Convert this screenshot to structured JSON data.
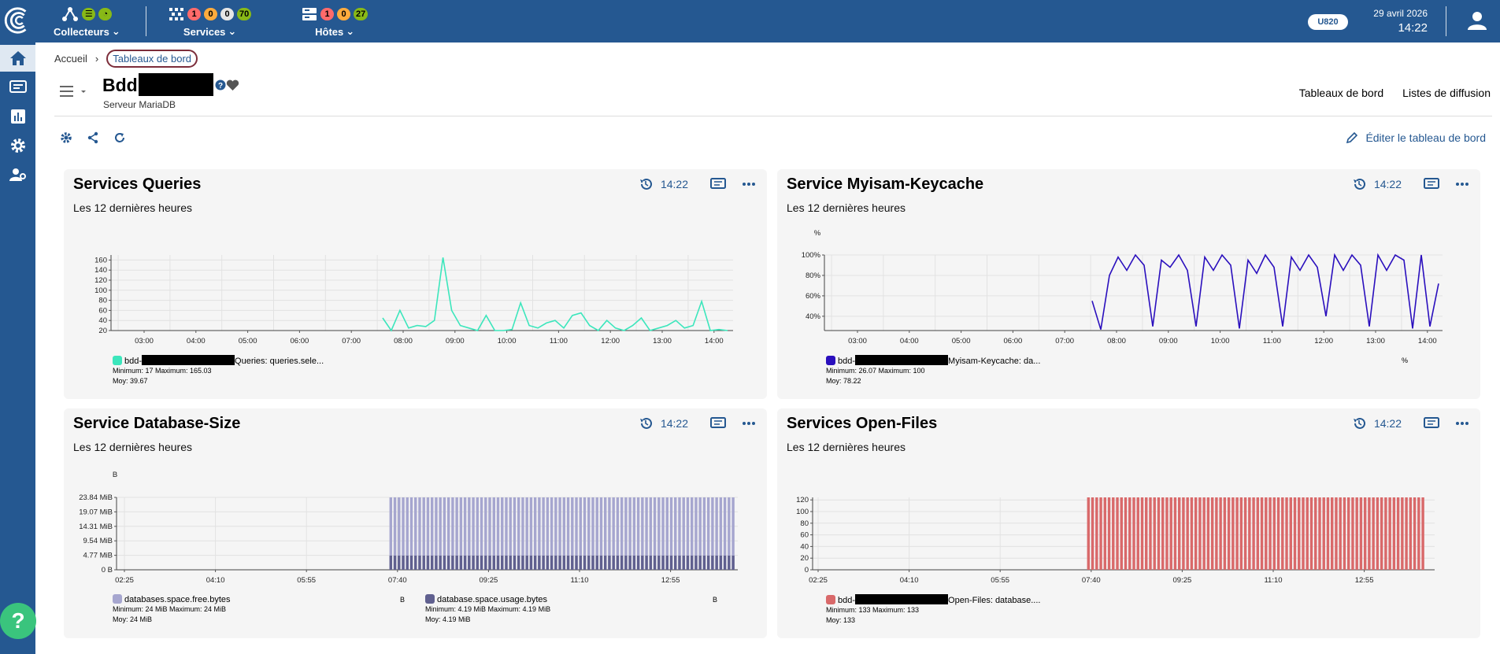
{
  "topbar": {
    "collectors": {
      "label": "Collecteurs"
    },
    "services": {
      "label": "Services",
      "counts": [
        "1",
        "0",
        "0",
        "70"
      ]
    },
    "hosts": {
      "label": "Hôtes",
      "counts": [
        "1",
        "0",
        "27"
      ]
    },
    "version": "U820",
    "date": "29 avril 2026",
    "time": "14:22"
  },
  "breadcrumb": {
    "home": "Accueil",
    "current": "Tableaux de bord"
  },
  "header": {
    "title": "Bdd",
    "subtitle": "Serveur MariaDB",
    "links": [
      "Tableaux de bord",
      "Listes de diffusion"
    ],
    "edit": "Éditer le tableau de bord"
  },
  "panels": [
    {
      "title": "Services Queries",
      "subtitle": "Les 12 dernières heures",
      "time": "14:22",
      "unit": "",
      "legend": [
        {
          "name": "bdd-",
          "suffix": "Queries: queries.sele...",
          "color": "#3ce6bc",
          "min": "Minimum: 17",
          "max": "Maximum: 165.03",
          "avg": "Moy: 39.67"
        }
      ]
    },
    {
      "title": "Service Myisam-Keycache",
      "subtitle": "Les 12 dernières heures",
      "time": "14:22",
      "unit": "%",
      "legend": [
        {
          "name": "bdd-",
          "suffix": "Myisam-Keycache: da...",
          "color": "#2a0fbd",
          "min": "Minimum: 26.07",
          "max": "Maximum: 100",
          "avg": "Moy: 78.22",
          "unit": "%"
        }
      ]
    },
    {
      "title": "Service Database-Size",
      "subtitle": "Les 12 dernières heures",
      "time": "14:22",
      "unit": "B",
      "legend": [
        {
          "name": "databases.space.free.bytes",
          "suffix": "",
          "color": "#a6a6cf",
          "min": "Minimum: 24 MiB",
          "max": "Maximum: 24 MiB",
          "avg": "Moy: 24 MiB",
          "unit": "B"
        },
        {
          "name": "database.space.usage.bytes",
          "suffix": "",
          "color": "#60608f",
          "min": "Minimum: 4.19 MiB",
          "max": "Maximum: 4.19 MiB",
          "avg": "Moy: 4.19 MiB",
          "unit": "B"
        }
      ]
    },
    {
      "title": "Services Open-Files",
      "subtitle": "Les 12 dernières heures",
      "time": "14:22",
      "unit": "",
      "legend": [
        {
          "name": "bdd-",
          "suffix": "Open-Files: database....",
          "color": "#d9696a",
          "min": "Minimum: 133",
          "max": "Maximum: 133",
          "avg": "Moy: 133"
        }
      ]
    }
  ],
  "chart_data": [
    {
      "type": "line",
      "title": "Services Queries",
      "x": [
        "07:40",
        "07:50",
        "08:00",
        "08:10",
        "08:20",
        "08:30",
        "08:40",
        "08:50",
        "09:00",
        "09:10",
        "09:20",
        "09:30",
        "09:40",
        "09:50",
        "10:00",
        "10:10",
        "10:20",
        "10:30",
        "10:40",
        "10:50",
        "11:00",
        "11:10",
        "11:20",
        "11:30",
        "11:40",
        "11:50",
        "12:00",
        "12:10",
        "12:20",
        "12:30",
        "12:40",
        "12:50",
        "13:00",
        "13:10",
        "13:20",
        "13:30",
        "13:40",
        "13:50",
        "14:00",
        "14:10",
        "14:20"
      ],
      "series": [
        {
          "name": "Queries: queries.sele...",
          "values": [
            45,
            20,
            60,
            25,
            30,
            28,
            40,
            165,
            60,
            30,
            25,
            20,
            50,
            20,
            20,
            22,
            75,
            30,
            25,
            35,
            40,
            25,
            50,
            55,
            30,
            20,
            40,
            25,
            20,
            30,
            45,
            20,
            25,
            30,
            40,
            25,
            30,
            78,
            20,
            22,
            20
          ]
        }
      ],
      "xticks": [
        "03:00",
        "04:00",
        "05:00",
        "06:00",
        "07:00",
        "08:00",
        "09:00",
        "10:00",
        "11:00",
        "12:00",
        "13:00",
        "14:00"
      ],
      "yticks": [
        "20",
        "40",
        "60",
        "80",
        "100",
        "120",
        "140",
        "160"
      ],
      "ylim": [
        20,
        170
      ]
    },
    {
      "type": "line",
      "title": "Service Myisam-Keycache",
      "x": [
        "07:40",
        "07:50",
        "08:00",
        "08:10",
        "08:20",
        "08:30",
        "08:40",
        "08:50",
        "09:00",
        "09:10",
        "09:20",
        "09:30",
        "09:40",
        "09:50",
        "10:00",
        "10:10",
        "10:20",
        "10:30",
        "10:40",
        "10:50",
        "11:00",
        "11:10",
        "11:20",
        "11:30",
        "11:40",
        "11:50",
        "12:00",
        "12:10",
        "12:20",
        "12:30",
        "12:40",
        "12:50",
        "13:00",
        "13:10",
        "13:20",
        "13:30",
        "13:40",
        "13:50",
        "14:00",
        "14:10",
        "14:20"
      ],
      "series": [
        {
          "name": "Myisam-Keycache: da...",
          "values": [
            55,
            27,
            80,
            98,
            85,
            100,
            90,
            30,
            95,
            88,
            100,
            85,
            30,
            98,
            85,
            100,
            90,
            28,
            95,
            82,
            100,
            88,
            30,
            98,
            85,
            100,
            88,
            40,
            100,
            85,
            100,
            90,
            30,
            100,
            85,
            100,
            95,
            28,
            100,
            30,
            72
          ]
        }
      ],
      "xticks": [
        "03:00",
        "04:00",
        "05:00",
        "06:00",
        "07:00",
        "08:00",
        "09:00",
        "10:00",
        "11:00",
        "12:00",
        "13:00",
        "14:00"
      ],
      "yticks": [
        "40%",
        "60%",
        "80%",
        "100%"
      ],
      "ylim": [
        26,
        100
      ]
    },
    {
      "type": "bar",
      "title": "Service Database-Size",
      "series": [
        {
          "name": "databases.space.free.bytes",
          "value": "24 MiB"
        },
        {
          "name": "database.space.usage.bytes",
          "value": "4.19 MiB"
        }
      ],
      "xticks": [
        "02:25",
        "04:10",
        "05:55",
        "07:40",
        "09:25",
        "11:10",
        "12:55"
      ],
      "yticks": [
        "0 B",
        "4.77 MiB",
        "9.54 MiB",
        "14.31 MiB",
        "19.07 MiB",
        "23.84 MiB"
      ]
    },
    {
      "type": "bar",
      "title": "Services Open-Files",
      "series": [
        {
          "name": "Open-Files: database....",
          "value": 133
        }
      ],
      "xticks": [
        "02:25",
        "04:10",
        "05:55",
        "07:40",
        "09:25",
        "11:10",
        "12:55"
      ],
      "yticks": [
        "0",
        "20",
        "40",
        "60",
        "80",
        "100",
        "120"
      ]
    }
  ]
}
